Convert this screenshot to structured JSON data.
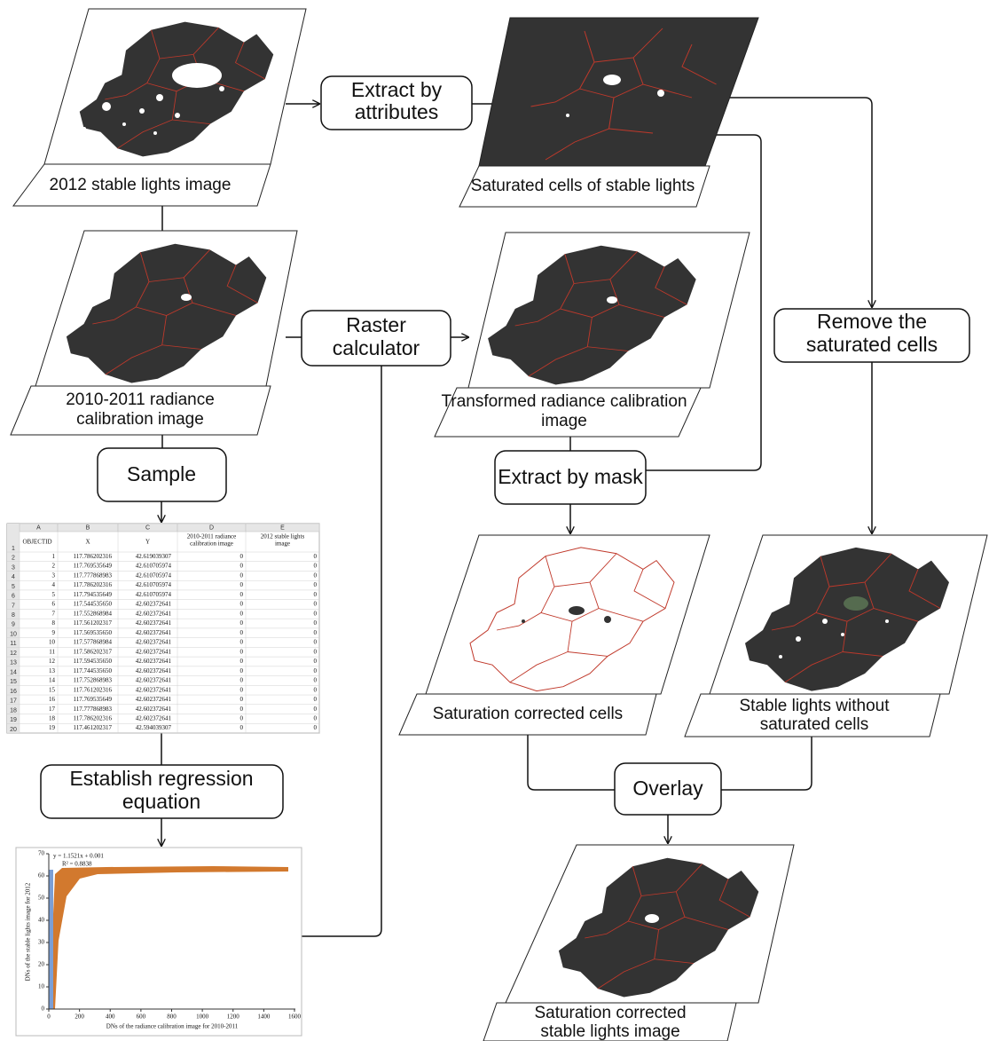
{
  "images": [
    {
      "label": [
        "2012 stable lights image"
      ]
    },
    {
      "label": [
        "Saturated cells of stable lights"
      ]
    },
    {
      "label": [
        "2010-2011 radiance",
        "calibration image"
      ]
    },
    {
      "label": [
        "Transformed radiance calibration",
        "image"
      ]
    },
    {
      "label": [
        "Saturation corrected cells"
      ]
    },
    {
      "label": [
        "Stable lights without",
        "saturated cells"
      ]
    },
    {
      "label": [
        "Saturation corrected",
        "stable lights image"
      ]
    }
  ],
  "processes": [
    {
      "label": [
        "Extract by",
        "attributes"
      ]
    },
    {
      "label": [
        "Raster",
        "calculator"
      ]
    },
    {
      "label": [
        "Remove the",
        "saturated cells"
      ]
    },
    {
      "label": [
        "Sample"
      ]
    },
    {
      "label": [
        "Extract by mask"
      ]
    },
    {
      "label": [
        "Establish regression",
        "equation"
      ]
    },
    {
      "label": [
        "Overlay"
      ]
    }
  ],
  "table": {
    "column_letters": [
      "A",
      "B",
      "C",
      "D",
      "E"
    ],
    "row_numbers": [
      1,
      2,
      3,
      4,
      5,
      6,
      7,
      8,
      9,
      10,
      11,
      12,
      13,
      14,
      15,
      16,
      17,
      18,
      19,
      20
    ],
    "header": [
      [
        "OBJECTID"
      ],
      [
        "X"
      ],
      [
        "Y"
      ],
      [
        "2010-2011 radiance",
        "calibration image"
      ],
      [
        "2012 stable lights",
        "image"
      ]
    ],
    "rows": [
      [
        1,
        "117.786202316",
        "42.619039307",
        0,
        0
      ],
      [
        2,
        "117.769535649",
        "42.610705974",
        0,
        0
      ],
      [
        3,
        "117.777868983",
        "42.610705974",
        0,
        0
      ],
      [
        4,
        "117.786202316",
        "42.610705974",
        0,
        0
      ],
      [
        5,
        "117.794535649",
        "42.610705974",
        0,
        0
      ],
      [
        6,
        "117.544535650",
        "42.602372641",
        0,
        0
      ],
      [
        7,
        "117.552868984",
        "42.602372641",
        0,
        0
      ],
      [
        8,
        "117.561202317",
        "42.602372641",
        0,
        0
      ],
      [
        9,
        "117.569535650",
        "42.602372641",
        0,
        0
      ],
      [
        10,
        "117.577868984",
        "42.602372641",
        0,
        0
      ],
      [
        11,
        "117.586202317",
        "42.602372641",
        0,
        0
      ],
      [
        12,
        "117.594535650",
        "42.602372641",
        0,
        0
      ],
      [
        13,
        "117.744535650",
        "42.602372641",
        0,
        0
      ],
      [
        14,
        "117.752868983",
        "42.602372641",
        0,
        0
      ],
      [
        15,
        "117.761202316",
        "42.602372641",
        0,
        0
      ],
      [
        16,
        "117.769535649",
        "42.602372641",
        0,
        0
      ],
      [
        17,
        "117.777868983",
        "42.602372641",
        0,
        0
      ],
      [
        18,
        "117.786202316",
        "42.602372641",
        0,
        0
      ],
      [
        19,
        "117.461202317",
        "42.594039307",
        0,
        0
      ]
    ]
  },
  "regression_plot": {
    "equation": "y = 1.1521x + 0.001",
    "r_squared": "R² = 0.8838",
    "xlabel": "DNs of the radiance calibration image for 2010-2011",
    "ylabel": "DNs of the stable lights image for 2012",
    "xlim": [
      0,
      1600
    ],
    "ylim": [
      0,
      70
    ],
    "xticks": [
      0,
      200,
      400,
      600,
      800,
      1000,
      1200,
      1400,
      1600
    ],
    "yticks": [
      0,
      10,
      20,
      30,
      40,
      50,
      60,
      70
    ]
  }
}
